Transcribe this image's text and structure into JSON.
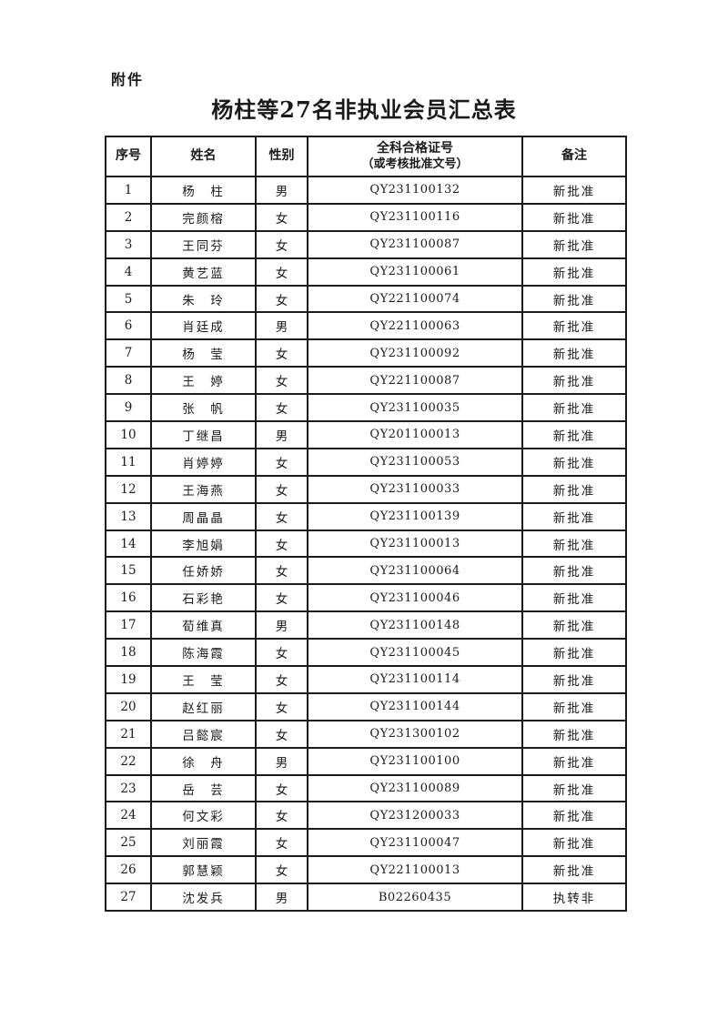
{
  "attachment_label": "附件",
  "title": "杨柱等27名非执业会员汇总表",
  "colors": {
    "text": "#1a1a1a",
    "border": "#1a1a1a",
    "background": "#ffffff"
  },
  "table": {
    "headers": {
      "no": "序号",
      "name": "姓名",
      "gender": "性别",
      "cert_line1": "全科合格证号",
      "cert_line2": "（或考核批准文号）",
      "note": "备注"
    },
    "rows": [
      {
        "no": "1",
        "name": "杨　柱",
        "gender": "男",
        "cert": "QY231100132",
        "note": "新批准"
      },
      {
        "no": "2",
        "name": "完颜榕",
        "gender": "女",
        "cert": "QY231100116",
        "note": "新批准"
      },
      {
        "no": "3",
        "name": "王同芬",
        "gender": "女",
        "cert": "QY231100087",
        "note": "新批准"
      },
      {
        "no": "4",
        "name": "黄艺蓝",
        "gender": "女",
        "cert": "QY231100061",
        "note": "新批准"
      },
      {
        "no": "5",
        "name": "朱　玲",
        "gender": "女",
        "cert": "QY221100074",
        "note": "新批准"
      },
      {
        "no": "6",
        "name": "肖廷成",
        "gender": "男",
        "cert": "QY221100063",
        "note": "新批准"
      },
      {
        "no": "7",
        "name": "杨　莹",
        "gender": "女",
        "cert": "QY231100092",
        "note": "新批准"
      },
      {
        "no": "8",
        "name": "王　婷",
        "gender": "女",
        "cert": "QY221100087",
        "note": "新批准"
      },
      {
        "no": "9",
        "name": "张　帆",
        "gender": "女",
        "cert": "QY231100035",
        "note": "新批准"
      },
      {
        "no": "10",
        "name": "丁继昌",
        "gender": "男",
        "cert": "QY201100013",
        "note": "新批准"
      },
      {
        "no": "11",
        "name": "肖婷婷",
        "gender": "女",
        "cert": "QY231100053",
        "note": "新批准"
      },
      {
        "no": "12",
        "name": "王海燕",
        "gender": "女",
        "cert": "QY231100033",
        "note": "新批准"
      },
      {
        "no": "13",
        "name": "周晶晶",
        "gender": "女",
        "cert": "QY231100139",
        "note": "新批准"
      },
      {
        "no": "14",
        "name": "李旭娟",
        "gender": "女",
        "cert": "QY231100013",
        "note": "新批准"
      },
      {
        "no": "15",
        "name": "任娇娇",
        "gender": "女",
        "cert": "QY231100064",
        "note": "新批准"
      },
      {
        "no": "16",
        "name": "石彩艳",
        "gender": "女",
        "cert": "QY231100046",
        "note": "新批准"
      },
      {
        "no": "17",
        "name": "荀维真",
        "gender": "男",
        "cert": "QY231100148",
        "note": "新批准"
      },
      {
        "no": "18",
        "name": "陈海霞",
        "gender": "女",
        "cert": "QY231100045",
        "note": "新批准"
      },
      {
        "no": "19",
        "name": "王　莹",
        "gender": "女",
        "cert": "QY231100114",
        "note": "新批准"
      },
      {
        "no": "20",
        "name": "赵红丽",
        "gender": "女",
        "cert": "QY231100144",
        "note": "新批准"
      },
      {
        "no": "21",
        "name": "吕懿宸",
        "gender": "女",
        "cert": "QY231300102",
        "note": "新批准"
      },
      {
        "no": "22",
        "name": "徐　舟",
        "gender": "男",
        "cert": "QY231100100",
        "note": "新批准"
      },
      {
        "no": "23",
        "name": "岳　芸",
        "gender": "女",
        "cert": "QY231100089",
        "note": "新批准"
      },
      {
        "no": "24",
        "name": "何文彩",
        "gender": "女",
        "cert": "QY231200033",
        "note": "新批准"
      },
      {
        "no": "25",
        "name": "刘丽霞",
        "gender": "女",
        "cert": "QY231100047",
        "note": "新批准"
      },
      {
        "no": "26",
        "name": "郭慧颖",
        "gender": "女",
        "cert": "QY221100013",
        "note": "新批准"
      },
      {
        "no": "27",
        "name": "沈发兵",
        "gender": "男",
        "cert": "B02260435",
        "note": "执转非"
      }
    ]
  }
}
